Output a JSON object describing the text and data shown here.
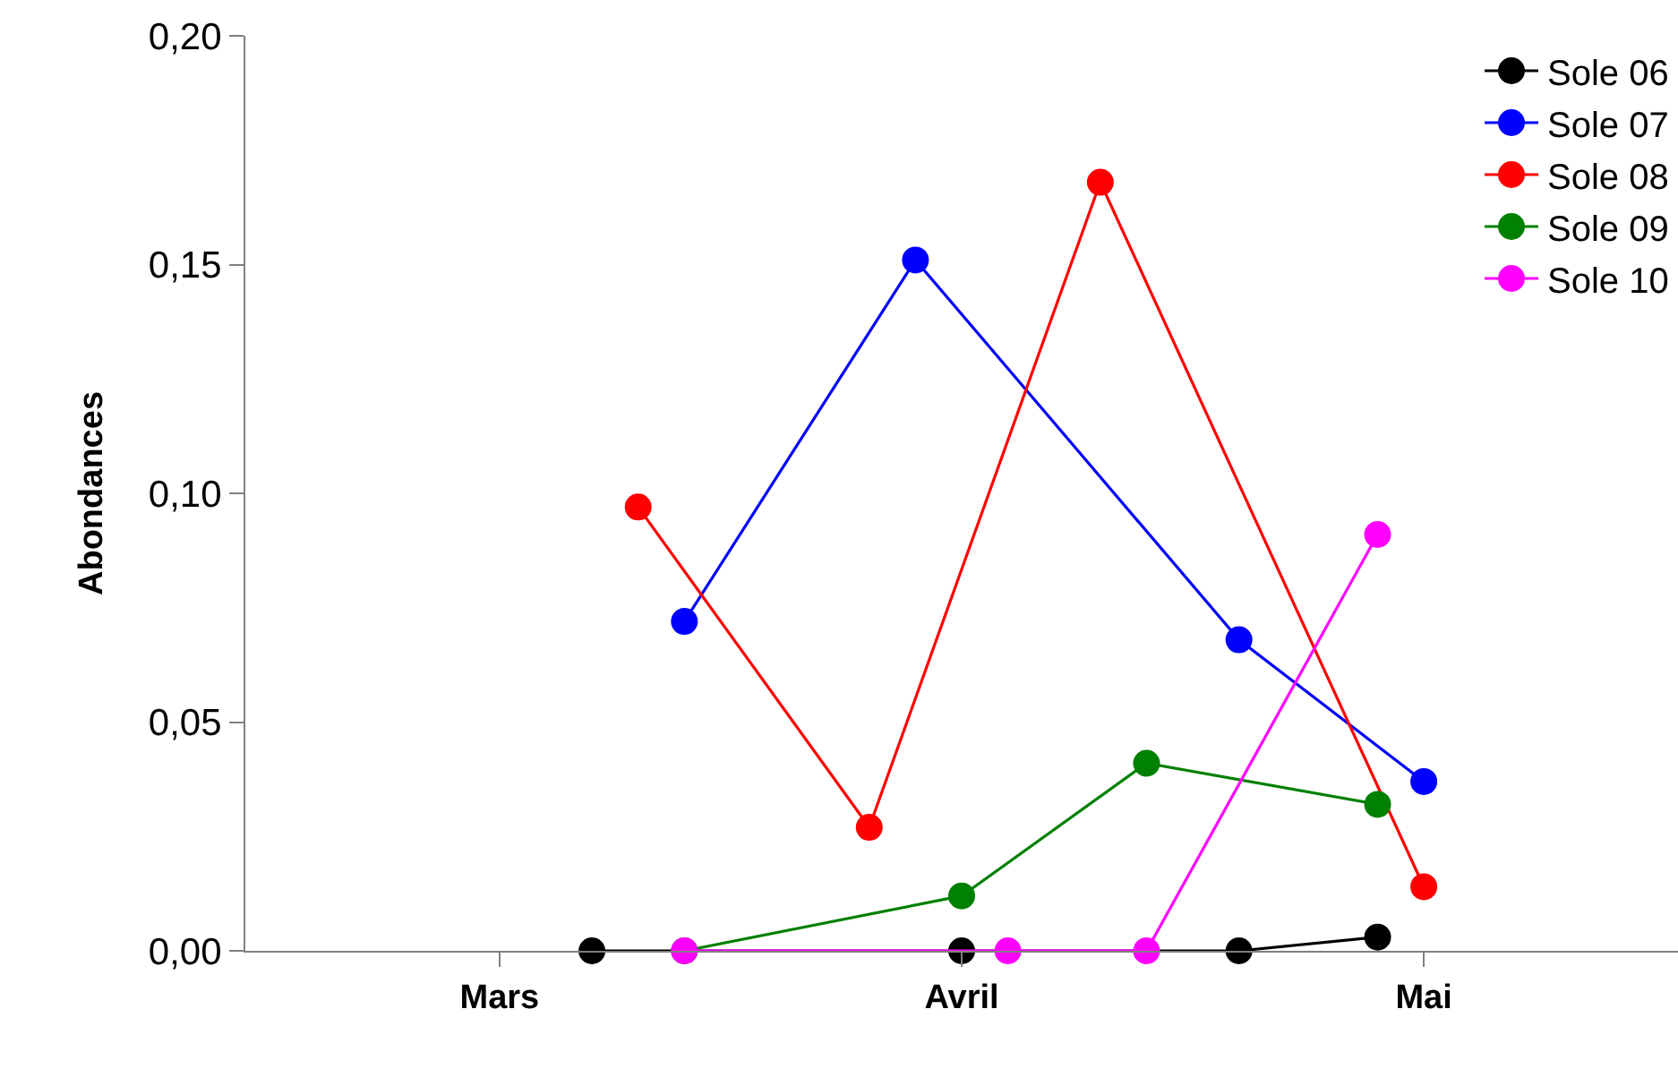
{
  "chart_data": {
    "type": "line",
    "ylabel": "Abondances",
    "categories": [
      null,
      null,
      null,
      null,
      null,
      "Mars",
      null,
      null,
      null,
      null,
      null,
      null,
      null,
      null,
      null,
      "Avril",
      null,
      null,
      null,
      null,
      null,
      null,
      null,
      null,
      null,
      "Mai",
      null,
      null,
      null,
      null,
      null
    ],
    "ylim": [
      0,
      0.2
    ],
    "yticks": [
      {
        "value": 0,
        "label": "0,00"
      },
      {
        "value": 0.05,
        "label": "0,05"
      },
      {
        "value": 0.1,
        "label": "0,10"
      },
      {
        "value": 0.15,
        "label": "0,15"
      },
      {
        "value": 0.2,
        "label": "0,20"
      }
    ],
    "grid": false,
    "legend": "top right",
    "marker": "circle",
    "line_style": "solid",
    "series": [
      {
        "name": "Sole 06",
        "color": "#000000",
        "values": [
          null,
          null,
          null,
          null,
          null,
          null,
          null,
          0,
          null,
          null,
          null,
          null,
          null,
          null,
          null,
          0,
          null,
          null,
          null,
          null,
          null,
          0,
          null,
          null,
          0.003,
          null,
          null,
          null,
          null,
          null,
          null
        ]
      },
      {
        "name": "Sole 07",
        "color": "#0000ff",
        "values": [
          null,
          null,
          null,
          null,
          null,
          null,
          null,
          null,
          null,
          0.072,
          null,
          null,
          null,
          null,
          0.151,
          null,
          null,
          null,
          null,
          null,
          null,
          0.068,
          null,
          null,
          null,
          0.037,
          null,
          null,
          null,
          null,
          null
        ]
      },
      {
        "name": "Sole 08",
        "color": "#ff0000",
        "values": [
          null,
          null,
          null,
          null,
          null,
          null,
          null,
          null,
          0.097,
          null,
          null,
          null,
          null,
          0.027,
          null,
          null,
          null,
          null,
          0.168,
          null,
          null,
          null,
          null,
          null,
          null,
          0.014,
          null,
          null,
          null,
          null,
          null
        ]
      },
      {
        "name": "Sole 09",
        "color": "#008000",
        "values": [
          null,
          null,
          null,
          null,
          null,
          null,
          null,
          null,
          null,
          0,
          null,
          null,
          null,
          null,
          null,
          0.012,
          null,
          null,
          null,
          0.041,
          null,
          null,
          null,
          null,
          0.032,
          null,
          null,
          null,
          null,
          null,
          null
        ]
      },
      {
        "name": "Sole 10",
        "color": "#ff00ff",
        "values": [
          null,
          null,
          null,
          null,
          null,
          null,
          null,
          null,
          null,
          0,
          null,
          null,
          null,
          null,
          null,
          null,
          0,
          null,
          null,
          0,
          null,
          null,
          null,
          null,
          0.091,
          null,
          null,
          null,
          null,
          null,
          null
        ]
      }
    ]
  }
}
